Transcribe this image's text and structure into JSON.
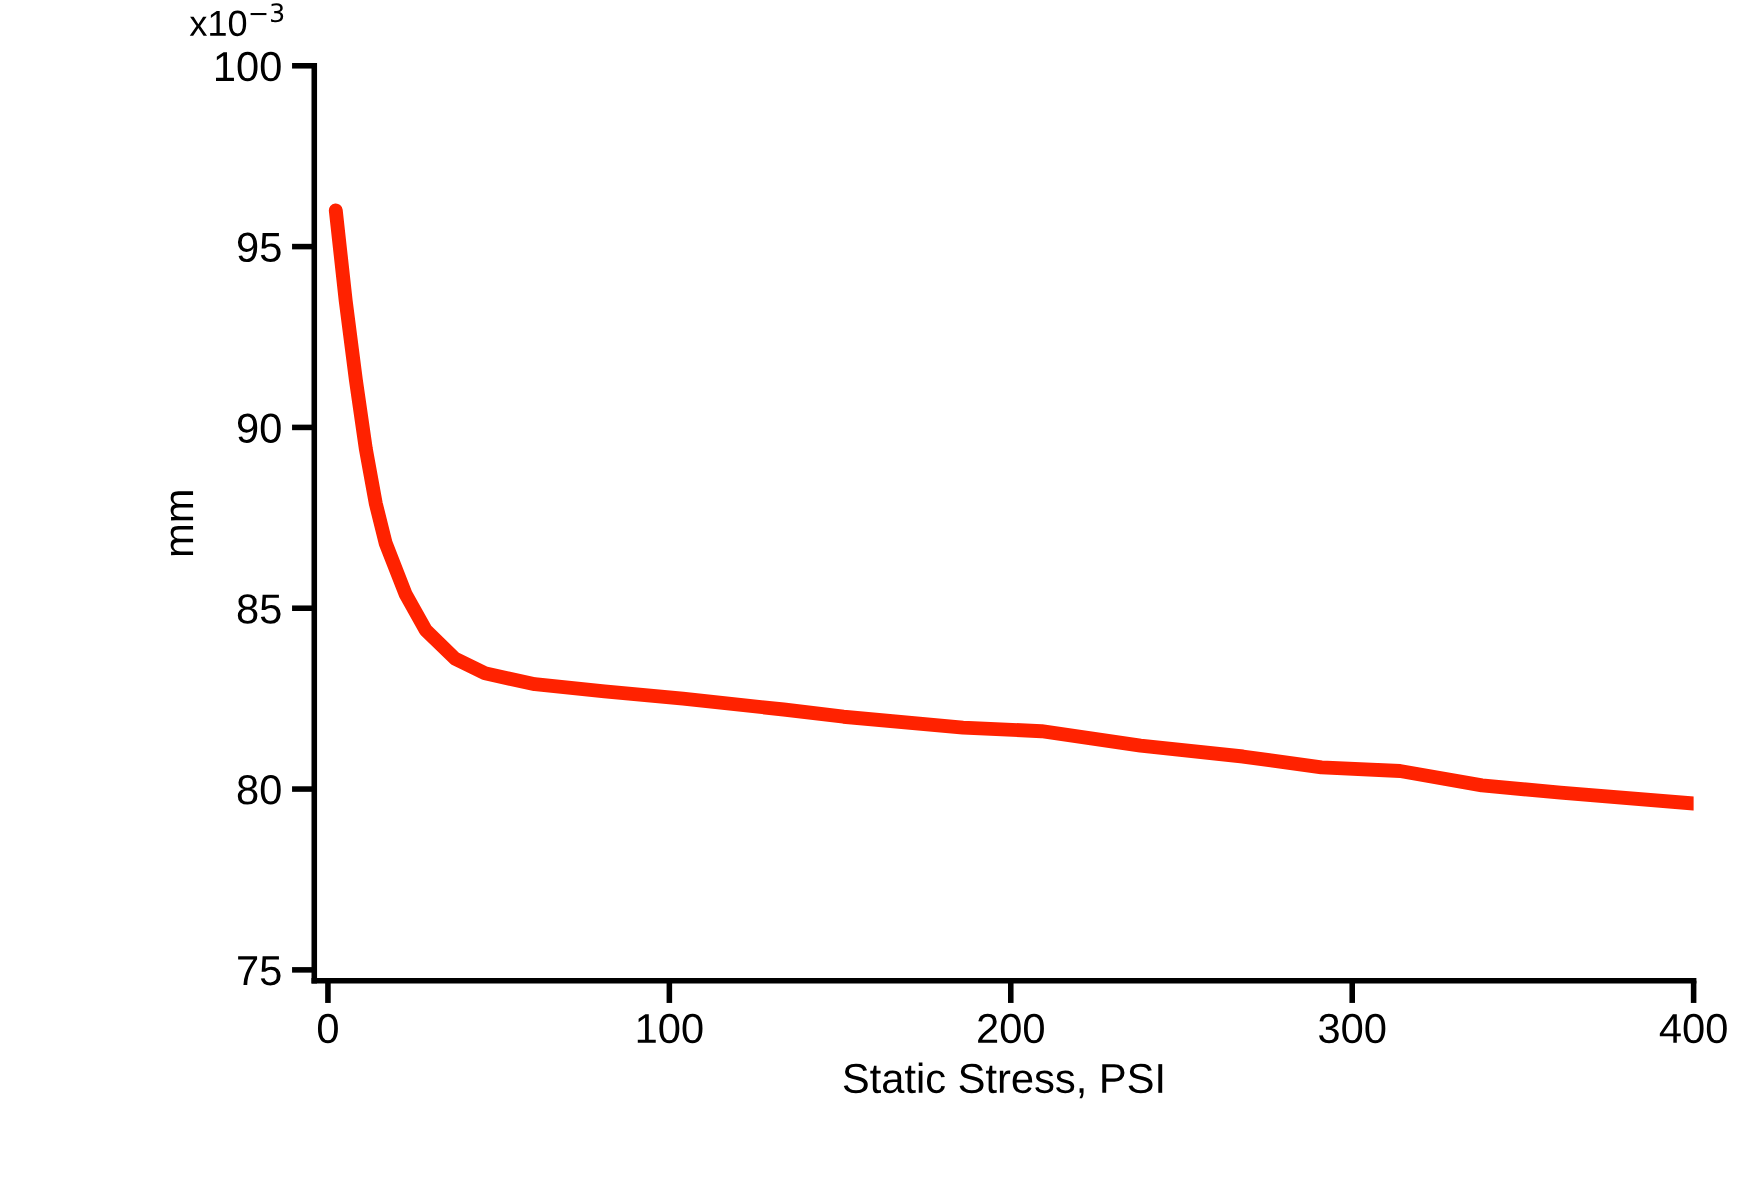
{
  "chart_data": {
    "type": "line",
    "xlabel": "Static Stress, PSI",
    "ylabel": "mm",
    "x": [
      2.3,
      5.2,
      8.2,
      11.1,
      14,
      16.9,
      22.7,
      28.6,
      37.3,
      46,
      60.6,
      81,
      104,
      133.5,
      151,
      186,
      209,
      238,
      268,
      291,
      314,
      338,
      361,
      400
    ],
    "series": [
      {
        "color": "#ff2200",
        "values": [
          96.0,
          93.5,
          91.3,
          89.4,
          87.9,
          86.8,
          85.4,
          84.4,
          83.6,
          83.2,
          82.9,
          82.7,
          82.5,
          82.2,
          82.0,
          81.7,
          81.6,
          81.2,
          80.9,
          80.6,
          80.5,
          80.1,
          79.9,
          79.6
        ]
      }
    ],
    "xlim": [
      -4,
      400
    ],
    "ylim": [
      74.7,
      100
    ],
    "xticks": [
      0,
      100,
      200,
      300,
      400
    ],
    "yticks": [
      75,
      80,
      85,
      90,
      95,
      100
    ],
    "annotations": [
      "x10$^{−3}$"
    ],
    "grid": false,
    "marker": "none",
    "line_style": "solid"
  }
}
